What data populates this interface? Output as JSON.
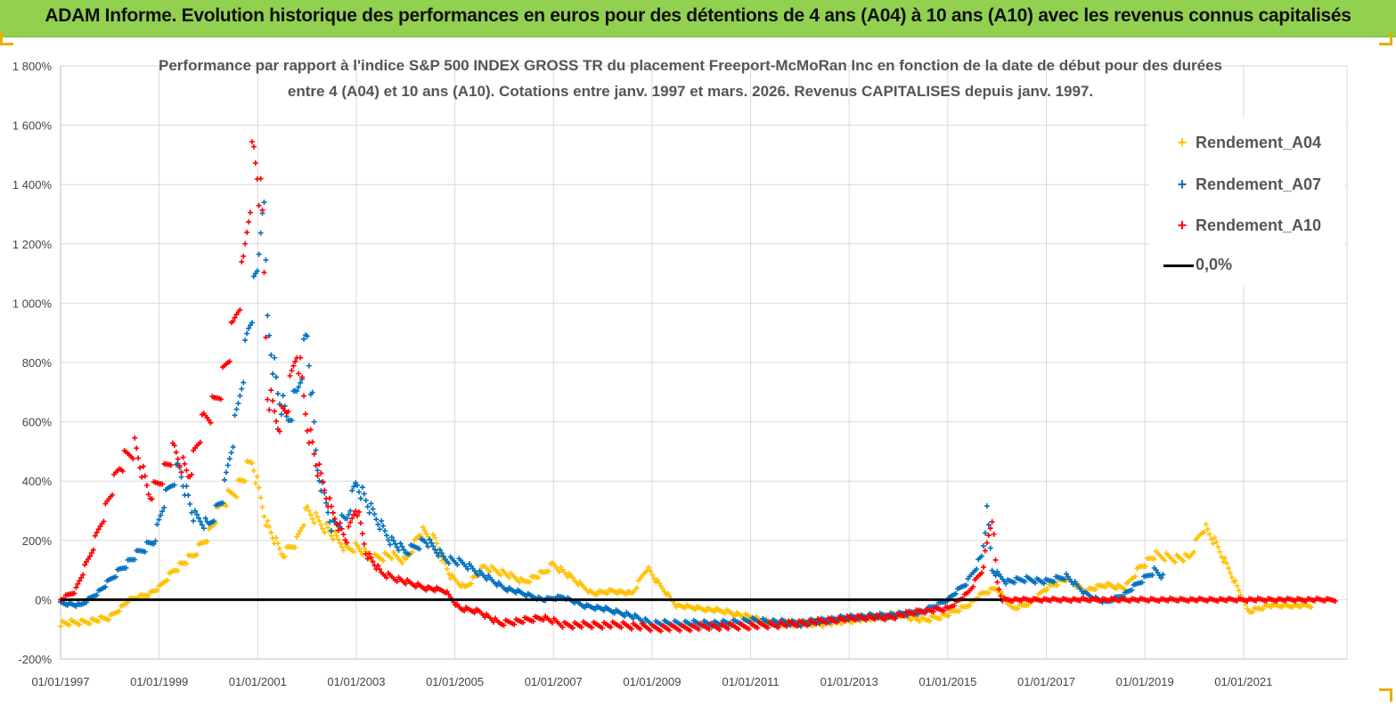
{
  "header": {
    "banner_title": "ADAM Informe. Evolution historique des performances en euros pour des détentions de 4 ans (A04) à 10 ans (A10) avec les revenus connus capitalisés"
  },
  "colors": {
    "banner": "#92d050",
    "a04": "#ffc000",
    "a07": "#0070c0",
    "a10": "#ff0000",
    "zero": "#000000",
    "grid": "#d9d9d9"
  },
  "chart_data": {
    "type": "scatter",
    "title_line1": "Performance par rapport à l'indice S&P 500 INDEX GROSS TR  du placement Freeport-McMoRan Inc en fonction de la date de début pour des durées",
    "title_line2": "entre 4 (A04) et 10 ans (A10). Cotations entre janv. 1997 et mars. 2026. Revenus CAPITALISES depuis janv. 1997.",
    "xlabel": "",
    "ylabel": "",
    "ylim": [
      -200,
      1800
    ],
    "xlim": [
      1997.0,
      2023.1
    ],
    "y_ticks": [
      "-200%",
      "0%",
      "200%",
      "400%",
      "600%",
      "800%",
      "1 000%",
      "1 200%",
      "1 400%",
      "1 600%",
      "1 800%"
    ],
    "x_ticks": [
      "01/01/1997",
      "01/01/1999",
      "01/01/2001",
      "01/01/2003",
      "01/01/2005",
      "01/01/2007",
      "01/01/2009",
      "01/01/2011",
      "01/01/2013",
      "01/01/2015",
      "01/01/2017",
      "01/01/2019",
      "01/01/2021"
    ],
    "grid": "vertical and horizontal",
    "legend_position": "top-right",
    "series": [
      {
        "name": "Rendement_A04",
        "color": "#ffc000",
        "points": [
          [
            1997.0,
            -80
          ],
          [
            1997.5,
            -75
          ],
          [
            1998.0,
            -60
          ],
          [
            1998.4,
            0
          ],
          [
            1998.8,
            20
          ],
          [
            1999.0,
            40
          ],
          [
            1999.3,
            100
          ],
          [
            1999.7,
            150
          ],
          [
            2000.0,
            220
          ],
          [
            2000.3,
            330
          ],
          [
            2000.6,
            380
          ],
          [
            2000.9,
            470
          ],
          [
            2001.0,
            380
          ],
          [
            2001.2,
            250
          ],
          [
            2001.5,
            150
          ],
          [
            2001.8,
            200
          ],
          [
            2002.0,
            300
          ],
          [
            2002.4,
            240
          ],
          [
            2002.8,
            170
          ],
          [
            2003.0,
            180
          ],
          [
            2003.3,
            140
          ],
          [
            2003.7,
            150
          ],
          [
            2004.0,
            130
          ],
          [
            2004.3,
            230
          ],
          [
            2004.6,
            200
          ],
          [
            2004.9,
            80
          ],
          [
            2005.2,
            40
          ],
          [
            2005.6,
            110
          ],
          [
            2006.0,
            90
          ],
          [
            2006.4,
            60
          ],
          [
            2006.8,
            90
          ],
          [
            2007.0,
            120
          ],
          [
            2007.4,
            70
          ],
          [
            2007.8,
            20
          ],
          [
            2008.2,
            30
          ],
          [
            2008.6,
            20
          ],
          [
            2008.9,
            110
          ],
          [
            2009.1,
            60
          ],
          [
            2009.5,
            -20
          ],
          [
            2010.0,
            -30
          ],
          [
            2010.5,
            -40
          ],
          [
            2011.0,
            -60
          ],
          [
            2011.5,
            -80
          ],
          [
            2012.0,
            -80
          ],
          [
            2012.5,
            -80
          ],
          [
            2013.0,
            -70
          ],
          [
            2013.5,
            -60
          ],
          [
            2014.0,
            -50
          ],
          [
            2014.5,
            -70
          ],
          [
            2015.0,
            -50
          ],
          [
            2015.4,
            -20
          ],
          [
            2015.7,
            20
          ],
          [
            2016.0,
            40
          ],
          [
            2016.3,
            -30
          ],
          [
            2016.7,
            -10
          ],
          [
            2017.0,
            40
          ],
          [
            2017.4,
            70
          ],
          [
            2017.8,
            30
          ],
          [
            2018.2,
            50
          ],
          [
            2018.6,
            40
          ],
          [
            2018.9,
            110
          ],
          [
            2019.2,
            150
          ],
          [
            2019.6,
            140
          ],
          [
            2019.9,
            140
          ],
          [
            2020.2,
            250
          ],
          [
            2020.5,
            170
          ],
          [
            2020.8,
            70
          ],
          [
            2021.1,
            -40
          ],
          [
            2021.5,
            -20
          ],
          [
            2022.0,
            -20
          ],
          [
            2022.4,
            -20
          ]
        ]
      },
      {
        "name": "Rendement_A07",
        "color": "#0070c0",
        "points": [
          [
            1997.0,
            -10
          ],
          [
            1997.4,
            -20
          ],
          [
            1997.8,
            30
          ],
          [
            1998.2,
            100
          ],
          [
            1998.6,
            160
          ],
          [
            1998.9,
            200
          ],
          [
            1999.1,
            330
          ],
          [
            1999.4,
            450
          ],
          [
            1999.7,
            280
          ],
          [
            2000.0,
            250
          ],
          [
            2000.3,
            350
          ],
          [
            2000.6,
            650
          ],
          [
            2000.8,
            900
          ],
          [
            2001.0,
            1100
          ],
          [
            2001.1,
            1400
          ],
          [
            2001.2,
            950
          ],
          [
            2001.4,
            700
          ],
          [
            2001.6,
            600
          ],
          [
            2001.8,
            700
          ],
          [
            2002.0,
            900
          ],
          [
            2002.2,
            450
          ],
          [
            2002.5,
            250
          ],
          [
            2002.8,
            270
          ],
          [
            2003.0,
            400
          ],
          [
            2003.3,
            300
          ],
          [
            2003.7,
            200
          ],
          [
            2004.0,
            160
          ],
          [
            2004.4,
            200
          ],
          [
            2004.8,
            140
          ],
          [
            2005.2,
            120
          ],
          [
            2005.6,
            80
          ],
          [
            2006.0,
            40
          ],
          [
            2006.4,
            20
          ],
          [
            2006.8,
            0
          ],
          [
            2007.2,
            10
          ],
          [
            2007.6,
            -20
          ],
          [
            2008.0,
            -30
          ],
          [
            2008.5,
            -50
          ],
          [
            2009.0,
            -80
          ],
          [
            2009.5,
            -80
          ],
          [
            2010.0,
            -80
          ],
          [
            2010.5,
            -80
          ],
          [
            2011.0,
            -70
          ],
          [
            2011.5,
            -75
          ],
          [
            2012.0,
            -80
          ],
          [
            2012.5,
            -70
          ],
          [
            2013.0,
            -60
          ],
          [
            2013.5,
            -55
          ],
          [
            2014.0,
            -50
          ],
          [
            2014.5,
            -40
          ],
          [
            2015.0,
            0
          ],
          [
            2015.4,
            60
          ],
          [
            2015.7,
            150
          ],
          [
            2015.8,
            300
          ],
          [
            2015.9,
            100
          ],
          [
            2016.2,
            60
          ],
          [
            2016.6,
            70
          ],
          [
            2017.0,
            60
          ],
          [
            2017.4,
            80
          ],
          [
            2017.8,
            20
          ],
          [
            2018.2,
            -10
          ],
          [
            2018.6,
            20
          ],
          [
            2018.9,
            60
          ],
          [
            2019.2,
            100
          ],
          [
            2019.4,
            70
          ]
        ]
      },
      {
        "name": "Rendement_A10",
        "color": "#ff0000",
        "points": [
          [
            1997.0,
            0
          ],
          [
            1997.3,
            30
          ],
          [
            1997.6,
            150
          ],
          [
            1997.9,
            300
          ],
          [
            1998.2,
            450
          ],
          [
            1998.5,
            520
          ],
          [
            1998.8,
            350
          ],
          [
            1999.0,
            400
          ],
          [
            1999.3,
            500
          ],
          [
            1999.6,
            420
          ],
          [
            1999.9,
            600
          ],
          [
            2000.1,
            650
          ],
          [
            2000.3,
            750
          ],
          [
            2000.5,
            900
          ],
          [
            2000.7,
            1100
          ],
          [
            2000.9,
            1500
          ],
          [
            2001.0,
            1450
          ],
          [
            2001.1,
            1250
          ],
          [
            2001.2,
            700
          ],
          [
            2001.4,
            600
          ],
          [
            2001.6,
            650
          ],
          [
            2001.8,
            850
          ],
          [
            2002.0,
            600
          ],
          [
            2002.2,
            450
          ],
          [
            2002.5,
            300
          ],
          [
            2002.8,
            200
          ],
          [
            2003.0,
            320
          ],
          [
            2003.2,
            160
          ],
          [
            2003.5,
            90
          ],
          [
            2004.0,
            60
          ],
          [
            2004.4,
            40
          ],
          [
            2004.8,
            30
          ],
          [
            2005.1,
            -30
          ],
          [
            2005.5,
            -40
          ],
          [
            2005.9,
            -80
          ],
          [
            2006.4,
            -70
          ],
          [
            2006.8,
            -60
          ],
          [
            2007.2,
            -85
          ],
          [
            2007.8,
            -85
          ],
          [
            2008.4,
            -85
          ],
          [
            2009.0,
            -95
          ],
          [
            2009.6,
            -95
          ],
          [
            2010.2,
            -90
          ],
          [
            2010.8,
            -90
          ],
          [
            2011.4,
            -85
          ],
          [
            2012.0,
            -80
          ],
          [
            2012.6,
            -70
          ],
          [
            2013.2,
            -60
          ],
          [
            2013.8,
            -60
          ],
          [
            2014.4,
            -40
          ],
          [
            2015.0,
            -30
          ],
          [
            2015.4,
            20
          ],
          [
            2015.7,
            100
          ],
          [
            2015.9,
            280
          ],
          [
            2016.0,
            60
          ],
          [
            2016.1,
            0
          ],
          [
            2017.0,
            0
          ],
          [
            2018.0,
            0
          ],
          [
            2019.0,
            0
          ],
          [
            2020.0,
            0
          ],
          [
            2021.0,
            0
          ],
          [
            2022.0,
            0
          ],
          [
            2022.9,
            0
          ]
        ]
      },
      {
        "name": "0,0%",
        "color": "#000000",
        "points": [
          [
            1997.0,
            0
          ],
          [
            2016.1,
            0
          ]
        ]
      }
    ]
  }
}
